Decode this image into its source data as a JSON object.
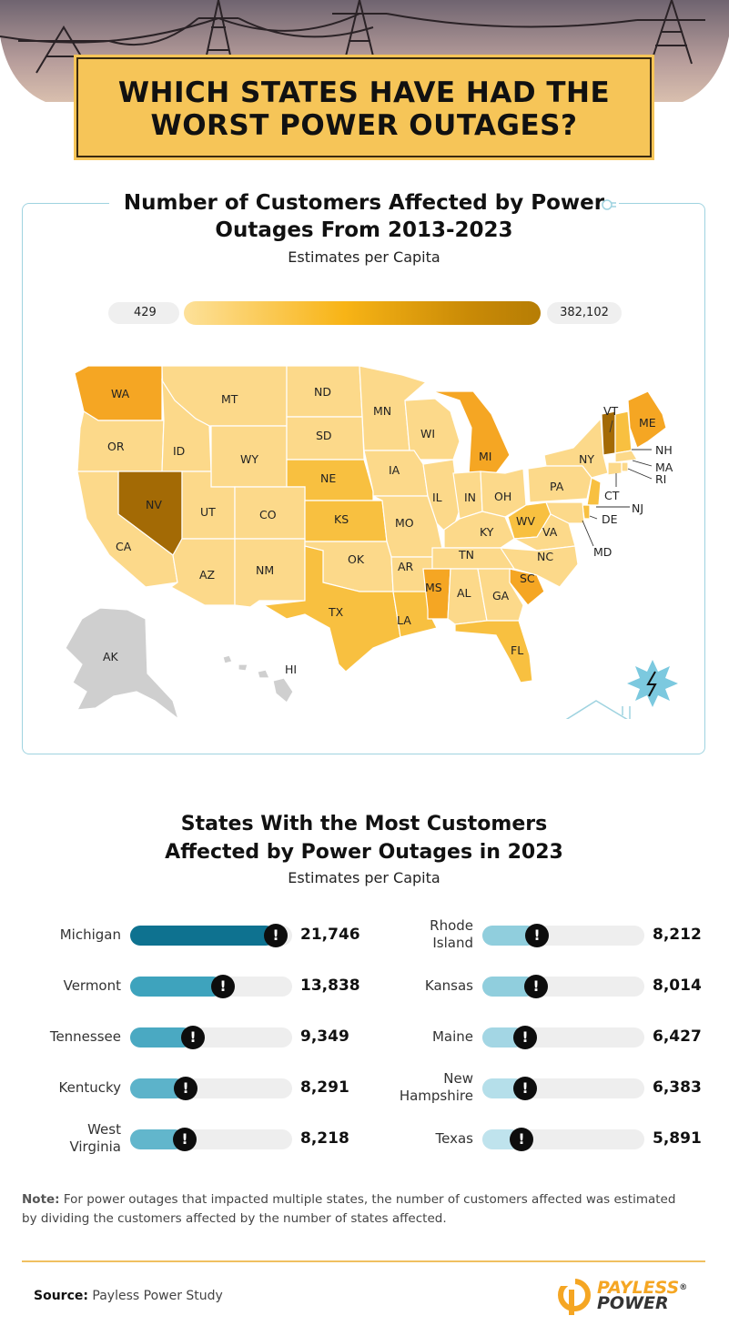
{
  "header": {
    "title_line1": "WHICH STATES HAVE HAD THE",
    "title_line2": "WORST POWER OUTAGES?"
  },
  "map": {
    "title_line1": "Number of Customers Affected by Power",
    "title_line2": "Outages  From 2013-2023",
    "subtitle": "Estimates per Capita",
    "legend_min": "429",
    "legend_max": "382,102",
    "states": [
      "WA",
      "MT",
      "ND",
      "MN",
      "WI",
      "MI",
      "VT",
      "ME",
      "NH",
      "MA",
      "RI",
      "CT",
      "NJ",
      "DE",
      "MD",
      "OR",
      "ID",
      "WY",
      "SD",
      "NE",
      "IA",
      "NY",
      "PA",
      "NV",
      "UT",
      "CO",
      "KS",
      "IL",
      "IN",
      "OH",
      "WV",
      "VA",
      "KY",
      "MO",
      "CA",
      "AZ",
      "NM",
      "OK",
      "AR",
      "TN",
      "NC",
      "SC",
      "TX",
      "MS",
      "AL",
      "GA",
      "LA",
      "FL",
      "AK",
      "HI"
    ],
    "colors": {
      "light": "#fcd98a",
      "mid": "#f8c040",
      "high": "#f5a623",
      "max": "#a36a05",
      "none": "#cfcfcf"
    }
  },
  "chart_data": {
    "type": "bar",
    "title": "States With the Most Customers Affected by Power Outages in 2023",
    "subtitle": "Estimates per Capita",
    "categories": [
      "Michigan",
      "Vermont",
      "Tennessee",
      "Kentucky",
      "West Virginia",
      "Rhode Island",
      "Kansas",
      "Maine",
      "New Hampshire",
      "Texas"
    ],
    "values": [
      21746,
      13838,
      9349,
      8291,
      8218,
      8212,
      8014,
      6427,
      6383,
      5891
    ],
    "value_labels": [
      "21,746",
      "13,838",
      "9,349",
      "8,291",
      "8,218",
      "8,212",
      "8,014",
      "6,427",
      "6,383",
      "5,891"
    ],
    "label_lines": [
      [
        "Michigan"
      ],
      [
        "Vermont"
      ],
      [
        "Tennessee"
      ],
      [
        "Kentucky"
      ],
      [
        "West",
        "Virginia"
      ],
      [
        "Rhode",
        "Island"
      ],
      [
        "Kansas"
      ],
      [
        "Maine"
      ],
      [
        "New",
        "Hampshire"
      ],
      [
        "Texas"
      ]
    ],
    "colors": [
      "#0e7290",
      "#3ea3bd",
      "#4aa9c2",
      "#5cb3ca",
      "#62b6cc",
      "#90cedd",
      "#90cedd",
      "#a3d6e4",
      "#b5dfea",
      "#bfe3ed"
    ],
    "marker": "!"
  },
  "note": {
    "label": "Note:",
    "text": " For power outages that impacted multiple states, the number of customers affected was estimated",
    "text2": "by dividing the customers affected by the number of states affected."
  },
  "source": {
    "label": "Source:",
    "text": " Payless Power Study"
  },
  "logo": {
    "line1": "PAYLESS",
    "line2": "POWER",
    "mark": "®"
  }
}
